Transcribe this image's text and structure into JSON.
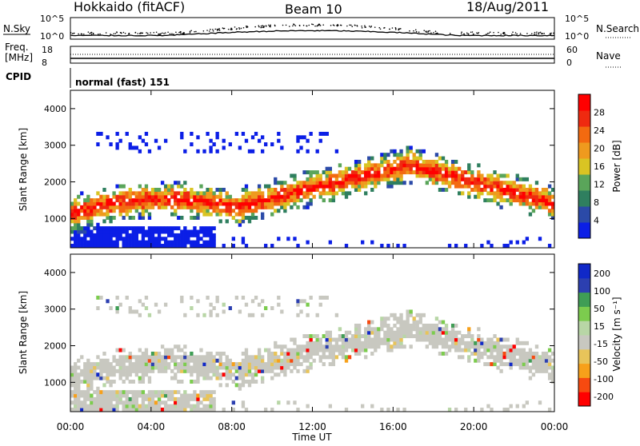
{
  "header": {
    "station": "Hokkaido (fitACF)",
    "beam": "Beam 10",
    "date": "18/Aug/2011"
  },
  "noise_panel": {
    "left_label": "N.Sky",
    "right_label": "N.Search",
    "left_ticks": [
      "10^5",
      "10^0"
    ],
    "right_ticks": [
      "10^5",
      "10^0"
    ]
  },
  "freq_panel": {
    "left_label_1": "Freq.",
    "left_label_2": "[MHz]",
    "left_ticks": [
      "18",
      "8"
    ],
    "right_label": "Nave",
    "right_ticks": [
      "60",
      "0"
    ]
  },
  "cpid_panel": {
    "label": "CPID",
    "text": "normal (fast) 151"
  },
  "colors": {
    "power_scale": [
      "#0b1ee6",
      "#2b4aa8",
      "#2f7f5f",
      "#5aa55a",
      "#d9c423",
      "#ef9a1e",
      "#f36a10",
      "#ef2a10",
      "#ff0000"
    ],
    "velocity_scale": [
      "#ff0000",
      "#f74a10",
      "#f7a01a",
      "#e8c45a",
      "#c8c8c0",
      "#b8d6a6",
      "#7ccc4e",
      "#3f9d55",
      "#2c3fb0",
      "#1028c8"
    ]
  },
  "chart_data": [
    {
      "type": "heatmap",
      "panel": "power",
      "ylabel": "Slant Range [km]",
      "yticks": [
        "1000",
        "2000",
        "3000",
        "4000"
      ],
      "ylim": [
        200,
        4500
      ],
      "colorbar_label": "Power [dB]",
      "colorbar_ticks": [
        "28",
        "24",
        "20",
        "16",
        "12",
        "8",
        "4"
      ],
      "colorbar_range": [
        0,
        32
      ]
    },
    {
      "type": "heatmap",
      "panel": "velocity",
      "ylabel": "Slant Range [km]",
      "yticks": [
        "1000",
        "2000",
        "3000",
        "4000"
      ],
      "ylim": [
        200,
        4500
      ],
      "colorbar_label": "Velocity [m s⁻¹]",
      "colorbar_ticks": [
        "200",
        "100",
        "50",
        "15",
        "-15",
        "-50",
        "-100",
        "-200"
      ],
      "xlabel": "Time UT",
      "xticks": [
        "00:00",
        "04:00",
        "08:00",
        "12:00",
        "16:00",
        "20:00",
        "00:00"
      ]
    }
  ]
}
